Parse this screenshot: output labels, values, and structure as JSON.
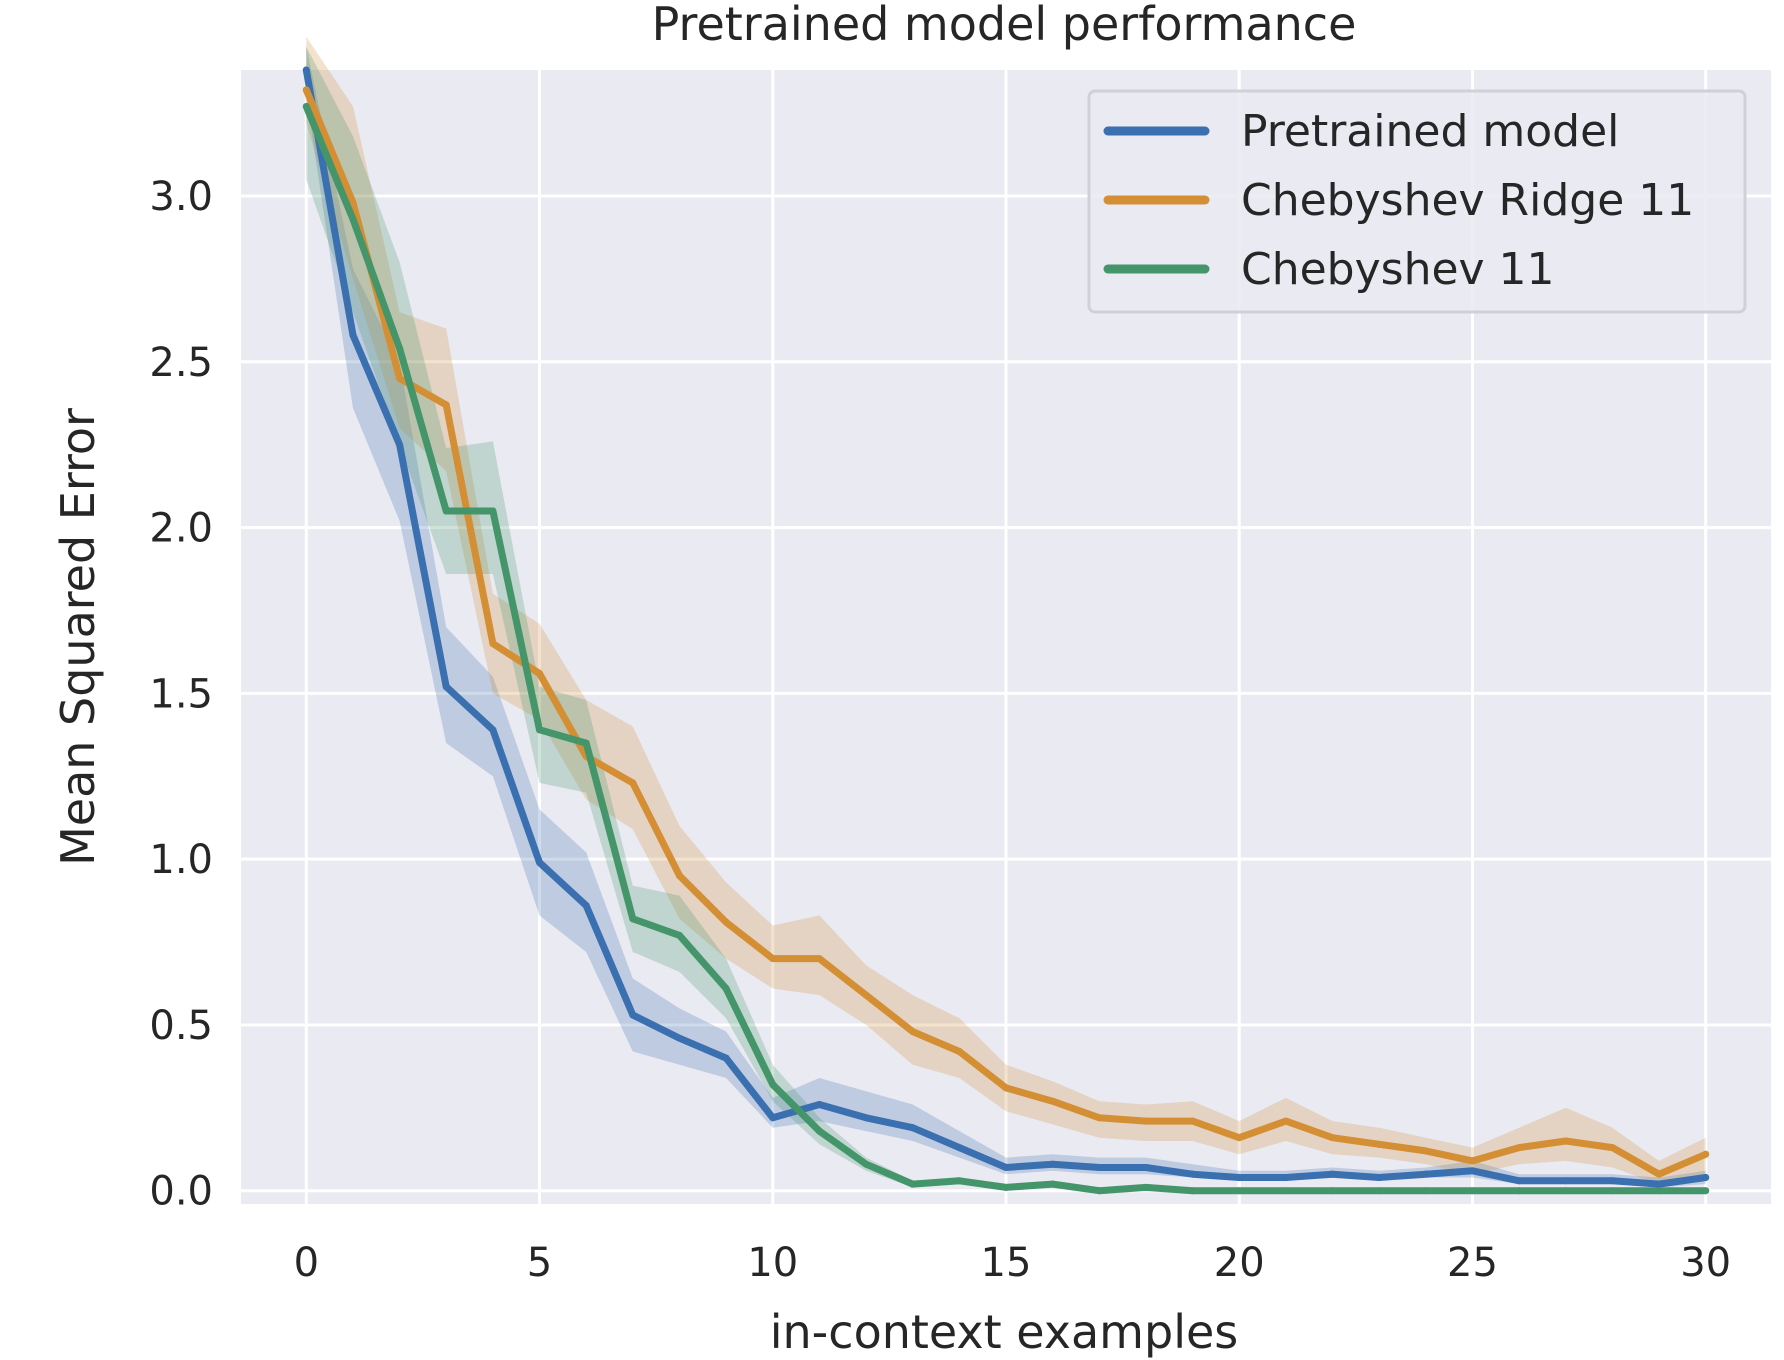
{
  "chart_data": {
    "type": "line",
    "title": "Pretrained model performance",
    "xlabel": "in-context examples",
    "ylabel": "Mean Squared Error",
    "xlim": [
      -1.4,
      31.4
    ],
    "ylim": [
      -0.04,
      3.38
    ],
    "x_ticks": [
      "0",
      "5",
      "10",
      "15",
      "20",
      "25",
      "30"
    ],
    "y_ticks": [
      "0.0",
      "0.5",
      "1.0",
      "1.5",
      "2.0",
      "2.5",
      "3.0"
    ],
    "grid": true,
    "legend_position": "top-right",
    "x": [
      0,
      1,
      2,
      3,
      4,
      5,
      6,
      7,
      8,
      9,
      10,
      11,
      12,
      13,
      14,
      15,
      16,
      17,
      18,
      19,
      20,
      21,
      22,
      23,
      24,
      25,
      26,
      27,
      28,
      29,
      30
    ],
    "series": [
      {
        "name": "Pretrained model",
        "color": "#3a6fb0",
        "values": [
          3.38,
          2.58,
          2.25,
          1.52,
          1.39,
          0.99,
          0.86,
          0.53,
          0.46,
          0.4,
          0.22,
          0.26,
          0.22,
          0.19,
          0.13,
          0.07,
          0.08,
          0.07,
          0.07,
          0.05,
          0.04,
          0.04,
          0.05,
          0.04,
          0.05,
          0.06,
          0.03,
          0.03,
          0.03,
          0.02,
          0.04
        ],
        "lower": [
          3.3,
          2.36,
          2.02,
          1.35,
          1.25,
          0.83,
          0.72,
          0.42,
          0.38,
          0.34,
          0.19,
          0.21,
          0.18,
          0.15,
          0.1,
          0.05,
          0.06,
          0.05,
          0.05,
          0.04,
          0.03,
          0.03,
          0.04,
          0.03,
          0.04,
          0.04,
          0.02,
          0.02,
          0.02,
          0.01,
          0.02
        ],
        "upper": [
          3.45,
          2.78,
          2.5,
          1.7,
          1.55,
          1.15,
          1.02,
          0.64,
          0.55,
          0.48,
          0.28,
          0.34,
          0.3,
          0.26,
          0.18,
          0.1,
          0.11,
          0.1,
          0.1,
          0.08,
          0.06,
          0.06,
          0.07,
          0.06,
          0.07,
          0.09,
          0.05,
          0.05,
          0.05,
          0.04,
          0.06
        ]
      },
      {
        "name": "Chebyshev Ridge 11",
        "color": "#d48f35",
        "values": [
          3.32,
          2.98,
          2.45,
          2.37,
          1.65,
          1.56,
          1.31,
          1.23,
          0.95,
          0.81,
          0.7,
          0.7,
          0.59,
          0.48,
          0.42,
          0.31,
          0.27,
          0.22,
          0.21,
          0.21,
          0.16,
          0.21,
          0.16,
          0.14,
          0.12,
          0.09,
          0.13,
          0.15,
          0.13,
          0.05,
          0.11
        ],
        "lower": [
          3.22,
          2.75,
          2.3,
          2.17,
          1.5,
          1.42,
          1.18,
          1.09,
          0.82,
          0.7,
          0.61,
          0.59,
          0.5,
          0.38,
          0.34,
          0.24,
          0.2,
          0.16,
          0.15,
          0.15,
          0.11,
          0.15,
          0.11,
          0.1,
          0.08,
          0.05,
          0.08,
          0.09,
          0.07,
          0.02,
          0.05
        ],
        "upper": [
          3.48,
          3.27,
          2.65,
          2.6,
          1.8,
          1.71,
          1.48,
          1.4,
          1.1,
          0.93,
          0.8,
          0.83,
          0.68,
          0.59,
          0.52,
          0.38,
          0.33,
          0.27,
          0.26,
          0.27,
          0.21,
          0.28,
          0.21,
          0.19,
          0.16,
          0.13,
          0.19,
          0.25,
          0.19,
          0.09,
          0.16
        ]
      },
      {
        "name": "Chebyshev 11",
        "color": "#44956a",
        "values": [
          3.27,
          2.93,
          2.54,
          2.05,
          2.05,
          1.39,
          1.35,
          0.82,
          0.77,
          0.61,
          0.32,
          0.18,
          0.08,
          0.02,
          0.03,
          0.01,
          0.02,
          0.0,
          0.01,
          0.0,
          0.0,
          0.0,
          0.0,
          0.0,
          0.0,
          0.0,
          0.0,
          0.0,
          0.0,
          0.0,
          0.0
        ],
        "lower": [
          3.05,
          2.65,
          2.25,
          1.86,
          1.86,
          1.23,
          1.2,
          0.72,
          0.66,
          0.52,
          0.27,
          0.14,
          0.06,
          0.01,
          0.02,
          0.0,
          0.01,
          0.0,
          0.0,
          0.0,
          0.0,
          0.0,
          0.0,
          0.0,
          0.0,
          0.0,
          0.0,
          0.0,
          0.0,
          0.0,
          0.0
        ],
        "upper": [
          3.45,
          3.18,
          2.8,
          2.24,
          2.26,
          1.52,
          1.48,
          0.92,
          0.89,
          0.7,
          0.38,
          0.22,
          0.1,
          0.03,
          0.04,
          0.02,
          0.03,
          0.01,
          0.01,
          0.01,
          0.01,
          0.01,
          0.01,
          0.01,
          0.01,
          0.01,
          0.01,
          0.01,
          0.01,
          0.01,
          0.01
        ]
      }
    ]
  }
}
